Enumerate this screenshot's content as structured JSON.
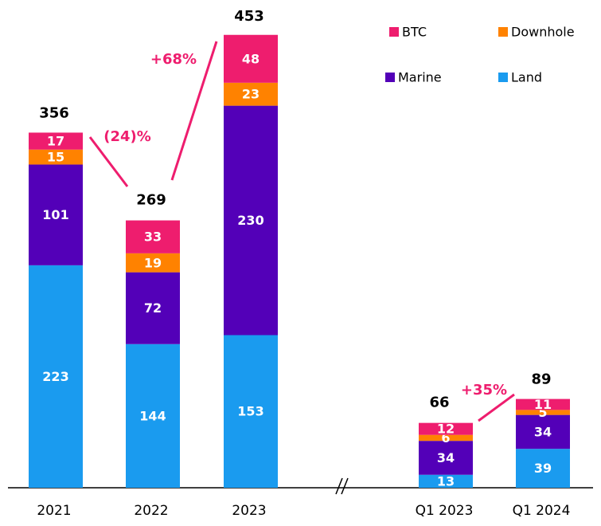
{
  "chart_data": {
    "type": "stacked_bar",
    "categories": [
      "2021",
      "2022",
      "2023",
      "Q1 2023",
      "Q1 2024"
    ],
    "series": [
      {
        "name": "Land",
        "color": "#1a9bef",
        "values": [
          223,
          144,
          153,
          13,
          39
        ]
      },
      {
        "name": "Marine",
        "color": "#5300b8",
        "values": [
          101,
          72,
          230,
          34,
          34
        ]
      },
      {
        "name": "Downhole",
        "color": "#ff8200",
        "values": [
          15,
          19,
          23,
          6,
          5
        ]
      },
      {
        "name": "BTC",
        "color": "#ee1d6e",
        "values": [
          17,
          33,
          48,
          12,
          11
        ]
      }
    ],
    "totals": [
      356,
      269,
      453,
      66,
      89
    ],
    "annotations": [
      "(24)%",
      "+68%",
      "+35%"
    ]
  }
}
